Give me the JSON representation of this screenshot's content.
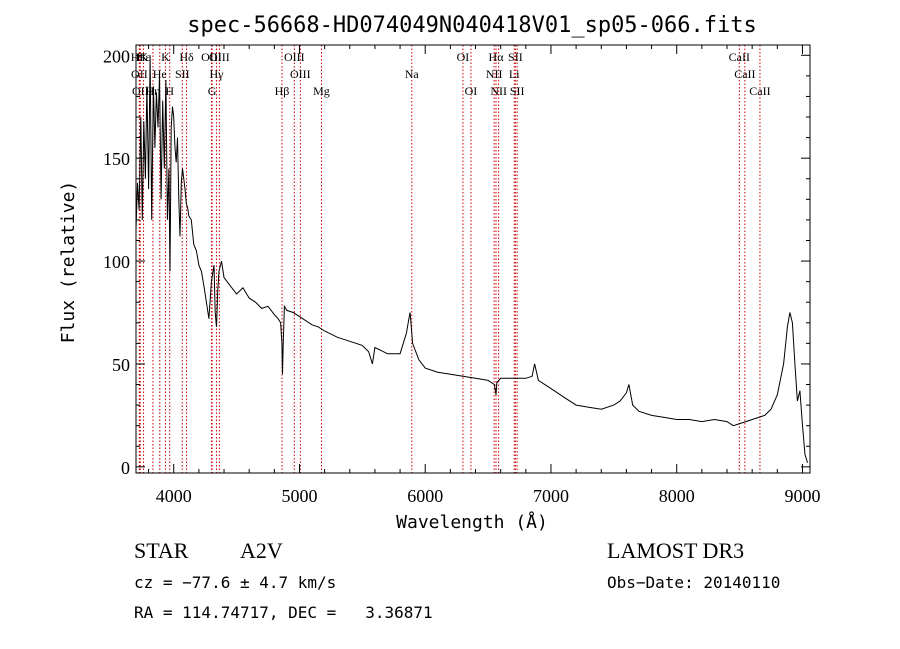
{
  "chart_data": {
    "type": "line",
    "title": "spec-56668-HD074049N040418V01_sp05-066.fits",
    "xlabel": "Wavelength (Å)",
    "ylabel": "Flux (relative)",
    "xlim": [
      3700,
      9060
    ],
    "ylim": [
      -3,
      205
    ],
    "xticks": [
      4000,
      5000,
      6000,
      7000,
      8000,
      9000
    ],
    "yticks": [
      0,
      50,
      100,
      150,
      200
    ],
    "grid": false,
    "line_color": "#000000",
    "marker_color": "#cc0000",
    "series": [
      {
        "x": [
          3700,
          3712,
          3725,
          3738,
          3750,
          3762,
          3775,
          3787,
          3800,
          3812,
          3825,
          3838,
          3850,
          3862,
          3875,
          3887,
          3900,
          3912,
          3925,
          3938,
          3950,
          3962,
          3970,
          3980,
          3990,
          4000,
          4010,
          4020,
          4030,
          4040,
          4050,
          4060,
          4070,
          4080,
          4090,
          4100,
          4110,
          4120,
          4140,
          4160,
          4180,
          4200,
          4220,
          4240,
          4260,
          4280,
          4300,
          4320,
          4330,
          4340,
          4350,
          4360,
          4380,
          4400,
          4450,
          4500,
          4550,
          4600,
          4650,
          4700,
          4750,
          4800,
          4830,
          4850,
          4860,
          4865,
          4870,
          4880,
          4900,
          4950,
          5000,
          5050,
          5100,
          5150,
          5200,
          5300,
          5400,
          5500,
          5550,
          5580,
          5600,
          5700,
          5800,
          5850,
          5870,
          5880,
          5900,
          5950,
          6000,
          6100,
          6200,
          6300,
          6400,
          6500,
          6550,
          6563,
          6570,
          6600,
          6700,
          6800,
          6850,
          6870,
          6900,
          7000,
          7100,
          7200,
          7300,
          7400,
          7500,
          7550,
          7600,
          7620,
          7650,
          7700,
          7800,
          7900,
          8000,
          8100,
          8200,
          8300,
          8400,
          8450,
          8500,
          8550,
          8600,
          8700,
          8750,
          8800,
          8850,
          8880,
          8900,
          8920,
          8940,
          8960,
          8980,
          9000,
          9020,
          9040
        ],
        "y": [
          115,
          138,
          125,
          170,
          120,
          168,
          140,
          185,
          135,
          200,
          120,
          185,
          155,
          182,
          165,
          190,
          130,
          178,
          145,
          188,
          120,
          145,
          95,
          165,
          175,
          170,
          155,
          148,
          160,
          130,
          112,
          138,
          145,
          140,
          135,
          128,
          126,
          122,
          120,
          108,
          105,
          98,
          95,
          88,
          80,
          72,
          90,
          98,
          75,
          68,
          85,
          95,
          100,
          92,
          88,
          84,
          87,
          82,
          80,
          77,
          78,
          74,
          72,
          70,
          60,
          45,
          58,
          78,
          76,
          75,
          73,
          71,
          69,
          68,
          66,
          63,
          61,
          59,
          56,
          50,
          58,
          55,
          55,
          65,
          72,
          75,
          60,
          52,
          48,
          46,
          45,
          44,
          43,
          42,
          40,
          35,
          41,
          43,
          43,
          43,
          44,
          50,
          42,
          38,
          34,
          30,
          29,
          28,
          30,
          32,
          36,
          40,
          30,
          27,
          25,
          24,
          23,
          23,
          22,
          23,
          22,
          20,
          21,
          22,
          23,
          25,
          28,
          35,
          50,
          68,
          75,
          70,
          50,
          32,
          37,
          20,
          6,
          2
        ]
      }
    ],
    "lines": [
      {
        "label": "HK",
        "wavelength": 3727,
        "row": 1
      },
      {
        "label": "OII",
        "wavelength": 3727,
        "row": 2
      },
      {
        "label": "OII",
        "wavelength": 3734,
        "row": 3
      },
      {
        "label": "Hε",
        "wavelength": 3760,
        "row": 1
      },
      {
        "label": "Hη",
        "wavelength": 3835,
        "row": 3
      },
      {
        "label": "He",
        "wavelength": 3889,
        "row": 2
      },
      {
        "label": "K",
        "wavelength": 3934,
        "row": 1
      },
      {
        "label": "H",
        "wavelength": 3968,
        "row": 3
      },
      {
        "label": "SII",
        "wavelength": 4068,
        "row": 2
      },
      {
        "label": "Hδ",
        "wavelength": 4102,
        "row": 1
      },
      {
        "label": "OIII",
        "wavelength": 4300,
        "row": 1
      },
      {
        "label": "Hγ",
        "wavelength": 4340,
        "row": 2
      },
      {
        "label": "G",
        "wavelength": 4305,
        "row": 3
      },
      {
        "label": "OIII",
        "wavelength": 4363,
        "row": 1
      },
      {
        "label": "Hβ",
        "wavelength": 4861,
        "row": 3
      },
      {
        "label": "OIII",
        "wavelength": 4959,
        "row": 1
      },
      {
        "label": "OIII",
        "wavelength": 5007,
        "row": 2
      },
      {
        "label": "Mg",
        "wavelength": 5175,
        "row": 3
      },
      {
        "label": "Na",
        "wavelength": 5893,
        "row": 2
      },
      {
        "label": "OI",
        "wavelength": 6300,
        "row": 1
      },
      {
        "label": "OI",
        "wavelength": 6364,
        "row": 3
      },
      {
        "label": "NII",
        "wavelength": 6548,
        "row": 2
      },
      {
        "label": "Hα",
        "wavelength": 6563,
        "row": 1
      },
      {
        "label": "NII",
        "wavelength": 6584,
        "row": 3
      },
      {
        "label": "SII",
        "wavelength": 6717,
        "row": 1
      },
      {
        "label": "Li",
        "wavelength": 6708,
        "row": 2
      },
      {
        "label": "SII",
        "wavelength": 6731,
        "row": 3
      },
      {
        "label": "CaII",
        "wavelength": 8498,
        "row": 1
      },
      {
        "label": "CaII",
        "wavelength": 8542,
        "row": 2
      },
      {
        "label": "CaII",
        "wavelength": 8662,
        "row": 3
      }
    ]
  },
  "footer": {
    "class_label": "STAR",
    "subclass": "A2V",
    "survey": "LAMOST DR3",
    "cz": "cz = −77.6 ± 4.7 km/s",
    "obs_date": "Obs−Date: 20140110",
    "coords": "RA = 114.74717, DEC =   3.36871"
  }
}
